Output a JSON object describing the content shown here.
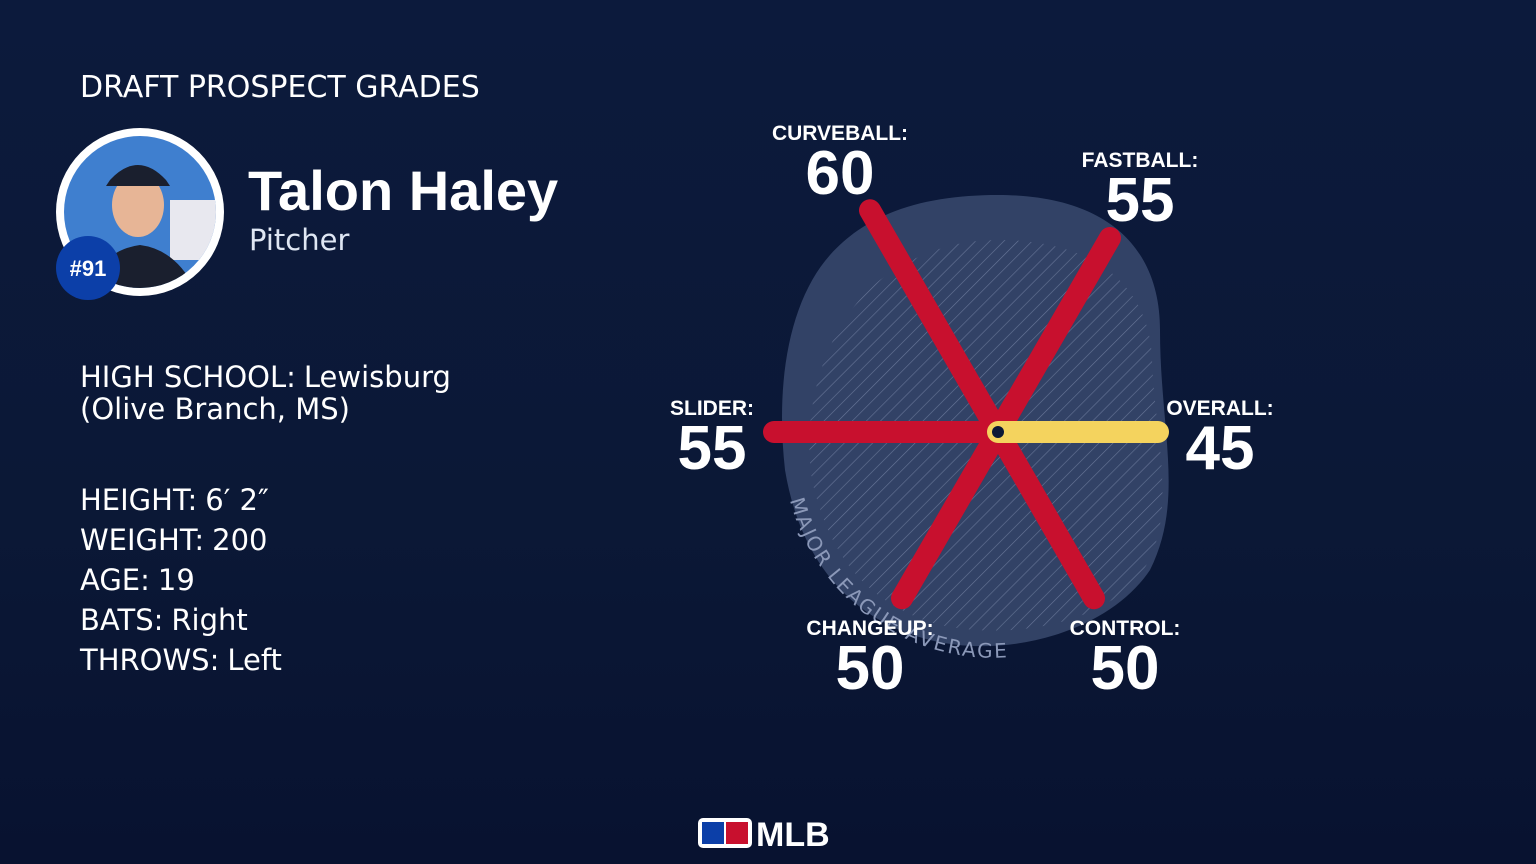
{
  "header": {
    "title": "DRAFT PROSPECT GRADES"
  },
  "player": {
    "name": "Talon Haley",
    "position": "Pitcher",
    "rank": "#91"
  },
  "details": [
    {
      "label": "HIGH SCHOOL:",
      "value": "Lewisburg",
      "value2": "(Olive Branch, MS)"
    },
    {
      "label": "HEIGHT:",
      "value": "6′ 2″"
    },
    {
      "label": "WEIGHT:",
      "value": "200"
    },
    {
      "label": "AGE:",
      "value": "19"
    },
    {
      "label": "BATS:",
      "value": "Right"
    },
    {
      "label": "THROWS:",
      "value": "Left"
    }
  ],
  "grades": [
    {
      "label": "CURVEBALL:",
      "value": 60
    },
    {
      "label": "FASTBALL:",
      "value": 55
    },
    {
      "label": "OVERALL:",
      "value": 45
    },
    {
      "label": "CONTROL:",
      "value": 50
    },
    {
      "label": "CHANGEUP:",
      "value": 50
    },
    {
      "label": "SLIDER:",
      "value": 55
    }
  ],
  "average_label": "MAJOR LEAGUE AVERAGE",
  "footer": {
    "logo": "MLB"
  }
}
